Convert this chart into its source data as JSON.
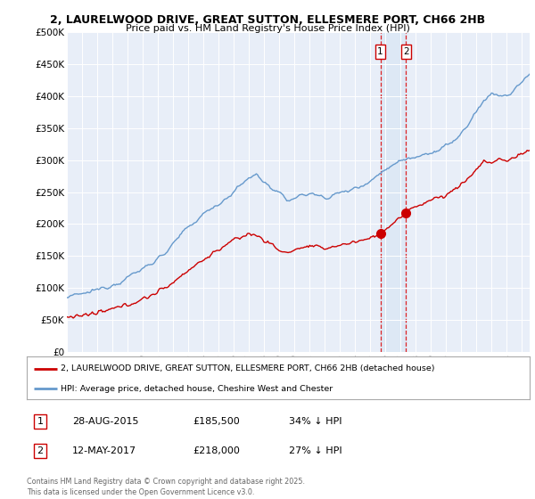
{
  "title": "2, LAURELWOOD DRIVE, GREAT SUTTON, ELLESMERE PORT, CH66 2HB",
  "subtitle": "Price paid vs. HM Land Registry's House Price Index (HPI)",
  "background_color": "#ffffff",
  "plot_bg_color": "#e8eef8",
  "ylim": [
    0,
    500000
  ],
  "yticks": [
    0,
    50000,
    100000,
    150000,
    200000,
    250000,
    300000,
    350000,
    400000,
    450000,
    500000
  ],
  "ytick_labels": [
    "£0",
    "£50K",
    "£100K",
    "£150K",
    "£200K",
    "£250K",
    "£300K",
    "£350K",
    "£400K",
    "£450K",
    "£500K"
  ],
  "xlim_start": 1995.0,
  "xlim_end": 2025.5,
  "transaction1_date": 2015.66,
  "transaction1_price": 185500,
  "transaction2_date": 2017.36,
  "transaction2_price": 218000,
  "line1_color": "#cc0000",
  "line2_color": "#6699cc",
  "vline_color": "#dd0000",
  "span_color": "#dce8f5",
  "legend1_text": "2, LAURELWOOD DRIVE, GREAT SUTTON, ELLESMERE PORT, CH66 2HB (detached house)",
  "legend2_text": "HPI: Average price, detached house, Cheshire West and Chester",
  "table_row1": [
    "1",
    "28-AUG-2015",
    "£185,500",
    "34% ↓ HPI"
  ],
  "table_row2": [
    "2",
    "12-MAY-2017",
    "£218,000",
    "27% ↓ HPI"
  ],
  "footer": "Contains HM Land Registry data © Crown copyright and database right 2025.\nThis data is licensed under the Open Government Licence v3.0.",
  "xticks": [
    1995,
    1996,
    1997,
    1998,
    1999,
    2000,
    2001,
    2002,
    2003,
    2004,
    2005,
    2006,
    2007,
    2008,
    2009,
    2010,
    2011,
    2012,
    2013,
    2014,
    2015,
    2016,
    2017,
    2018,
    2019,
    2020,
    2021,
    2022,
    2023,
    2024,
    2025
  ]
}
